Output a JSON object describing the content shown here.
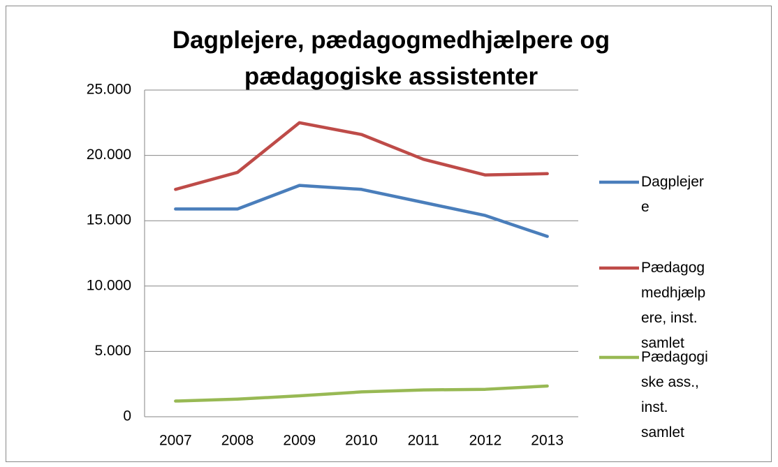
{
  "chart_data": {
    "type": "line",
    "title": "Dagplejere, pædagogmedhjælpere og pædagogiske assistenter",
    "categories": [
      "2007",
      "2008",
      "2009",
      "2010",
      "2011",
      "2012",
      "2013"
    ],
    "series": [
      {
        "name": "Dagplejere",
        "color": "#4a7ebb",
        "values": [
          15900,
          15900,
          17700,
          17400,
          16400,
          15400,
          13800
        ]
      },
      {
        "name": "Pædagogmedhjælpere, inst. samlet",
        "color": "#be4b48",
        "values": [
          17400,
          18700,
          22500,
          21600,
          19700,
          18500,
          18600
        ]
      },
      {
        "name": "Pædagogiske ass., inst. samlet",
        "color": "#98b954",
        "values": [
          1200,
          1350,
          1600,
          1900,
          2050,
          2100,
          2350
        ]
      }
    ],
    "ylim": [
      0,
      25000
    ],
    "yticks": [
      0,
      {
        "value": 5000,
        "label": "5.000"
      },
      {
        "value": 10000,
        "label": "10.000"
      },
      {
        "value": 15000,
        "label": "15.000"
      },
      {
        "value": 20000,
        "label": "20.000"
      },
      {
        "value": 25000,
        "label": "25.000"
      }
    ],
    "grid": true,
    "legend": "right"
  }
}
